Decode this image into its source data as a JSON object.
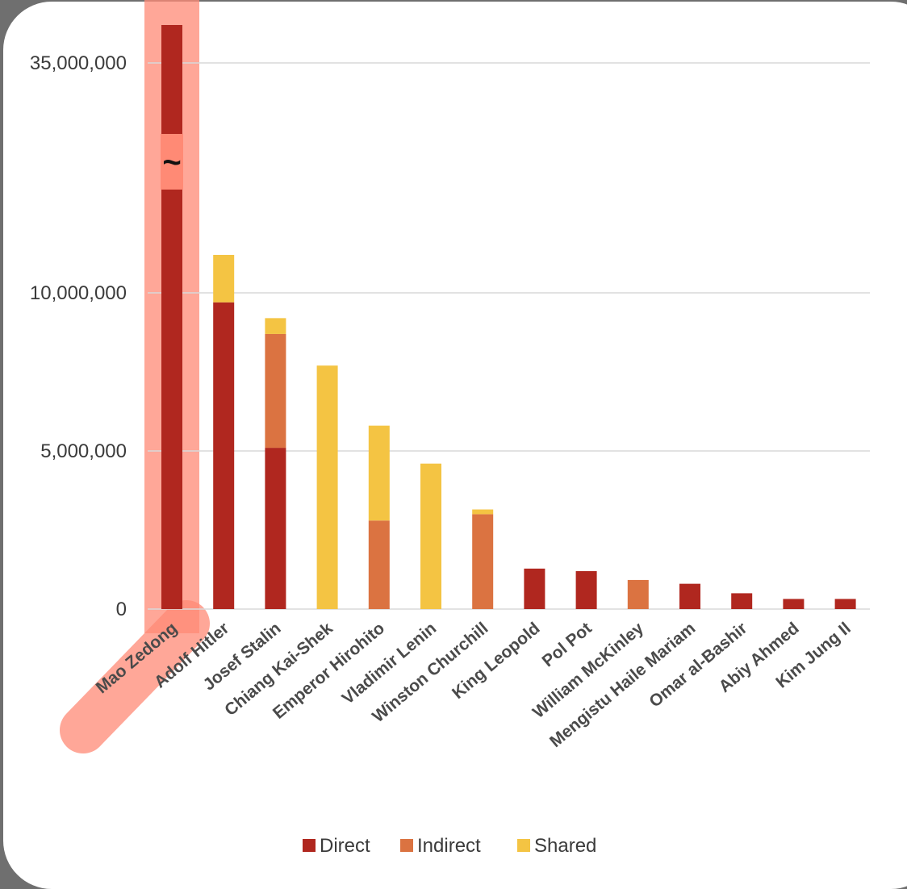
{
  "chart_data": {
    "type": "bar",
    "stacked": true,
    "title": "",
    "xlabel": "",
    "ylabel": "",
    "y_ticks": [
      "0",
      "5,000,000",
      "10,000,000",
      "35,000,000"
    ],
    "axis_break_symbol": "~",
    "categories": [
      "Mao Zedong",
      "Adolf Hitler",
      "Josef Stalin",
      "Chiang Kai-Shek",
      "Emperor Hirohito",
      "Vladimir Lenin",
      "Winston Churchill",
      "King Leopold",
      "Pol Pot",
      "William McKinley",
      "Mengistu Haile Mariam",
      "Omar al-Bashir",
      "Abiy Ahmed",
      "Kim Jung Il"
    ],
    "series": [
      {
        "name": "Direct",
        "color": "#b0271f",
        "values": [
          38000000,
          9700000,
          5100000,
          0,
          0,
          0,
          0,
          1280000,
          1200000,
          0,
          800000,
          500000,
          320000,
          320000
        ]
      },
      {
        "name": "Indirect",
        "color": "#db7341",
        "values": [
          0,
          0,
          3600000,
          0,
          2800000,
          0,
          3000000,
          0,
          0,
          920000,
          0,
          0,
          0,
          0
        ]
      },
      {
        "name": "Shared",
        "color": "#f4c443",
        "values": [
          0,
          1500000,
          500000,
          7700000,
          3000000,
          4600000,
          150000,
          0,
          0,
          0,
          0,
          0,
          0,
          0
        ]
      }
    ],
    "highlighted_category": "Mao Zedong",
    "highlight_color": "#ff8a75",
    "legend_position": "bottom"
  }
}
